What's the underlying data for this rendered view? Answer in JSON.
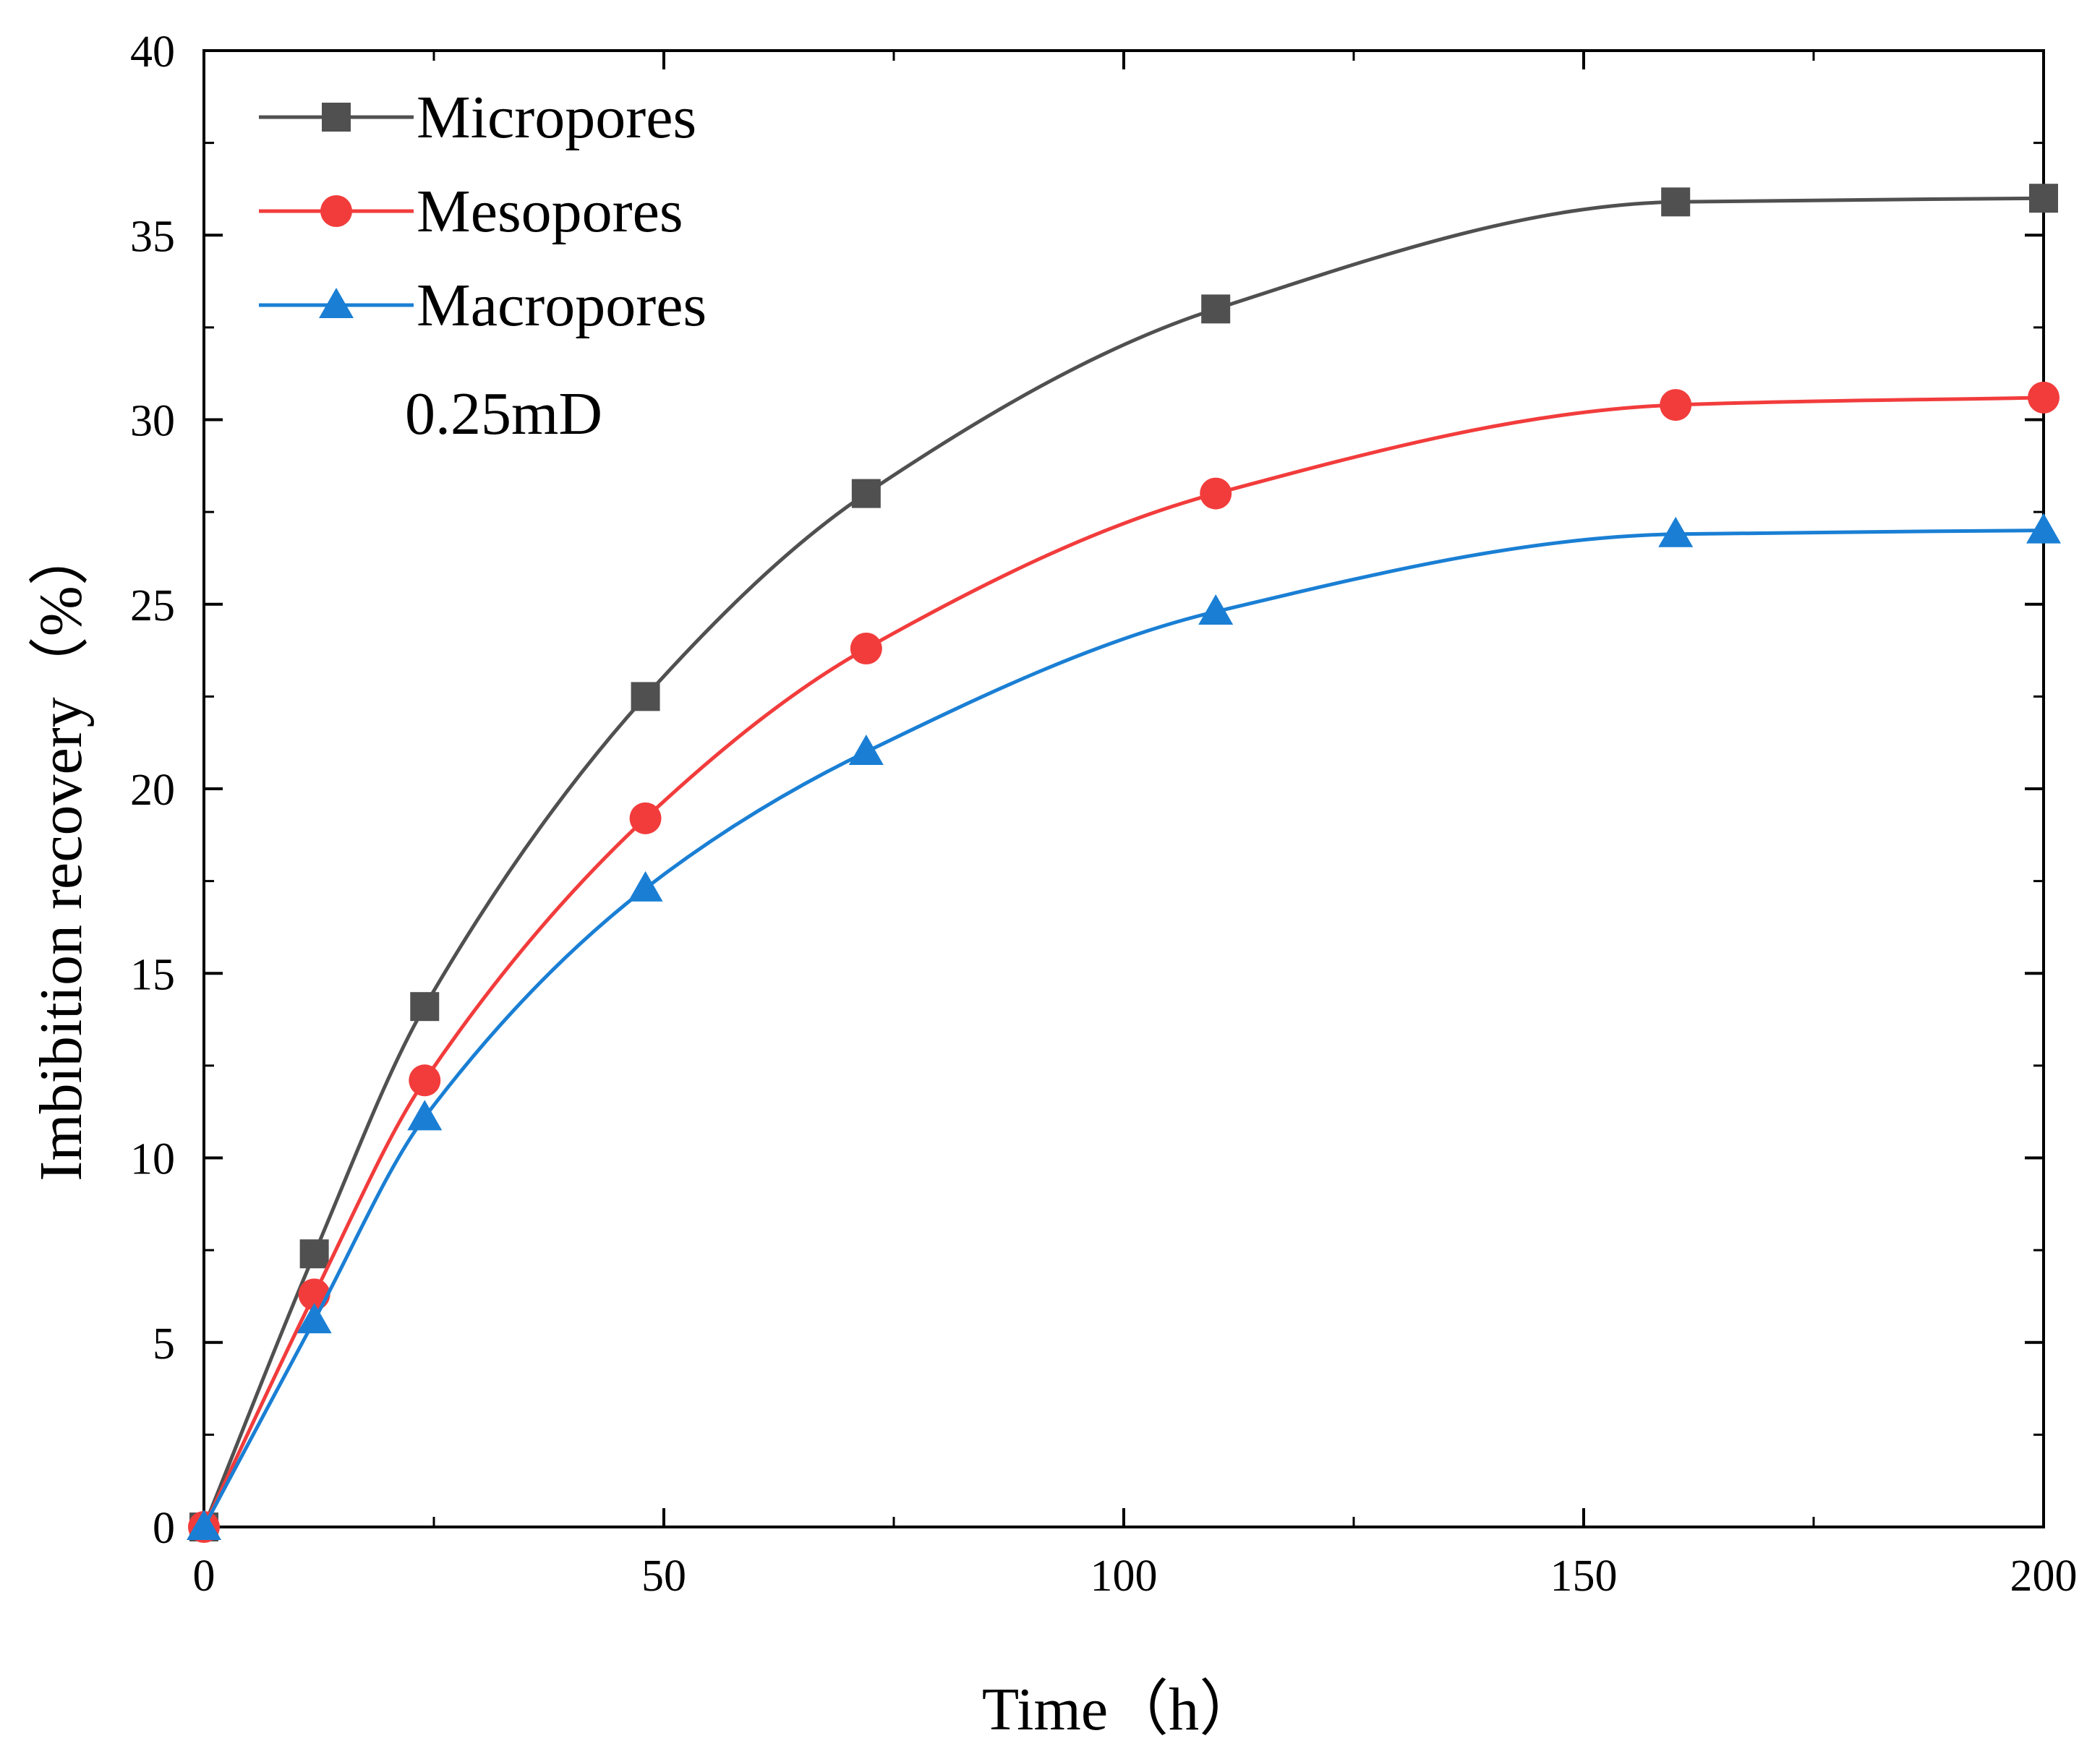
{
  "chart_data": {
    "type": "line",
    "title": "",
    "xlabel": "Time（h）",
    "ylabel": "Imbibition recovery（%）",
    "xlim": [
      0,
      200
    ],
    "ylim": [
      0,
      40
    ],
    "xticks": [
      0,
      50,
      100,
      150,
      200
    ],
    "yticks": [
      0,
      5,
      10,
      15,
      20,
      25,
      30,
      35,
      40
    ],
    "grid": false,
    "legend_position": "top-left",
    "annotation": "0.25mD",
    "x": [
      0,
      12,
      24,
      48,
      72,
      110,
      160,
      200
    ],
    "series": [
      {
        "name": "Micropores",
        "marker": "square",
        "color": "#505050",
        "values": [
          0,
          7.4,
          14.1,
          22.5,
          28.0,
          33.0,
          35.9,
          36.0
        ]
      },
      {
        "name": "Mesopores",
        "marker": "circle",
        "color": "#f23c3c",
        "values": [
          0,
          6.3,
          12.1,
          19.2,
          23.8,
          28.0,
          30.4,
          30.6
        ]
      },
      {
        "name": "Macropores",
        "marker": "triangle",
        "color": "#1a7fd4",
        "values": [
          0,
          5.6,
          11.1,
          17.3,
          21.0,
          24.8,
          26.9,
          27.0
        ]
      }
    ]
  }
}
